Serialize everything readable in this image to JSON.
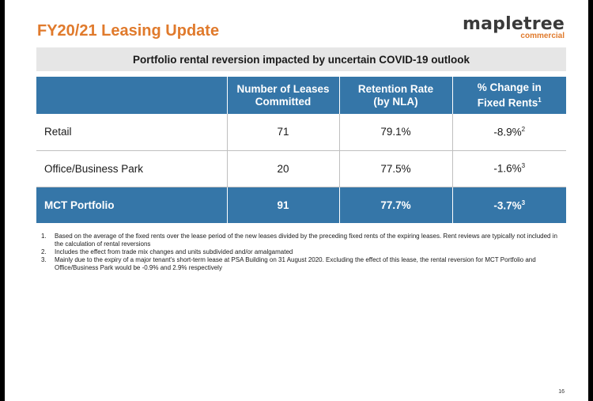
{
  "header": {
    "title": "FY20/21 Leasing Update",
    "logo_word": "mapletree",
    "logo_sub": "commercial"
  },
  "banner": "Portfolio rental reversion impacted by uncertain COVID-19 outlook",
  "table": {
    "headers": [
      {
        "line1": "",
        "line2": ""
      },
      {
        "line1": "Number of Leases",
        "line2": "Committed"
      },
      {
        "line1": "Retention Rate",
        "line2": "(by NLA)"
      },
      {
        "line1": "% Change in",
        "line2": "Fixed Rents",
        "sup": "1"
      }
    ],
    "rows": [
      {
        "name": "Retail",
        "leases": "71",
        "retention": "79.1%",
        "change": "-8.9%",
        "sup": "2"
      },
      {
        "name": "Office/Business Park",
        "leases": "20",
        "retention": "77.5%",
        "change": "-1.6%",
        "sup": "3"
      }
    ],
    "total": {
      "name": "MCT Portfolio",
      "leases": "91",
      "retention": "77.7%",
      "change": "-3.7%",
      "sup": "3"
    }
  },
  "footnotes": [
    {
      "num": "1.",
      "text": "Based on the average of the fixed rents over the lease period of the new leases divided by the preceding fixed rents of the expiring leases. Rent reviews are typically not included in the calculation of rental reversions"
    },
    {
      "num": "2.",
      "text": "Includes the effect from trade mix changes and units subdivided and/or amalgamated"
    },
    {
      "num": "3.",
      "text": "Mainly due to the expiry of a major tenant's short-term lease at PSA Building on 31 August 2020. Excluding the effect of this lease, the rental reversion for MCT Portfolio and Office/Business Park would be -0.9% and 2.9% respectively"
    }
  ],
  "page_number": "16",
  "colors": {
    "accent": "#e07a2c",
    "table_header": "#3576a8",
    "banner_bg": "#e6e6e6"
  }
}
